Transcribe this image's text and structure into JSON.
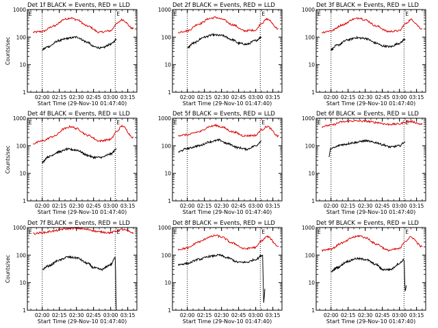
{
  "chart_data": {
    "type": "line",
    "yscale": "log",
    "ylim": [
      1,
      1000
    ],
    "y_ticks": [
      "1",
      "10",
      "100",
      "1000"
    ],
    "x_ticks": [
      "02:00",
      "02:15",
      "02:30",
      "02:45",
      "03:00",
      "03:15"
    ],
    "panels": [
      {
        "title": "Det 1f BLACK = Events, RED = LLD",
        "ylabel": "Counts/sec",
        "xlabel": "Start Time (29-Nov-10 01:47:40)",
        "mark_e": "E",
        "mark_s": "S",
        "series": [
          {
            "color": "#dd0000",
            "x": [
              "01:52",
              "02:00",
              "02:10",
              "02:20",
              "02:25",
              "02:30",
              "02:40",
              "02:50",
              "03:00",
              "03:05",
              "03:10",
              "03:20"
            ],
            "y": [
              150,
              160,
              250,
              450,
              500,
              430,
              250,
              150,
              170,
              300,
              430,
              200
            ]
          },
          {
            "color": "#000000",
            "x": [
              "02:00",
              "02:05",
              "02:15",
              "02:22",
              "02:30",
              "02:40",
              "02:45",
              "02:52",
              "03:00",
              "03:05"
            ],
            "y": [
              35,
              45,
              75,
              90,
              100,
              65,
              45,
              40,
              55,
              80
            ]
          }
        ]
      },
      {
        "title": "Det 2f BLACK = Events, RED = LLD",
        "ylabel": "",
        "xlabel": "Start Time (29-Nov-10 01:47:40)",
        "mark_e": "E",
        "mark_s": "S",
        "series": [
          {
            "color": "#dd0000",
            "x": [
              "01:52",
              "02:00",
              "02:10",
              "02:20",
              "02:25",
              "02:30",
              "02:40",
              "02:50",
              "03:00",
              "03:05",
              "03:10",
              "03:20"
            ],
            "y": [
              150,
              170,
              300,
              480,
              520,
              450,
              280,
              170,
              180,
              320,
              450,
              200
            ]
          },
          {
            "color": "#000000",
            "x": [
              "02:00",
              "02:05",
              "02:15",
              "02:22",
              "02:30",
              "02:40",
              "02:45",
              "02:52",
              "03:00",
              "03:05"
            ],
            "y": [
              40,
              60,
              100,
              120,
              115,
              80,
              60,
              55,
              75,
              100
            ]
          }
        ]
      },
      {
        "title": "Det 3f BLACK = Events, RED = LLD",
        "ylabel": "",
        "xlabel": "Start Time (29-Nov-10 01:47:40)",
        "mark_e": "E",
        "mark_s": "S",
        "series": [
          {
            "color": "#dd0000",
            "x": [
              "01:52",
              "02:00",
              "02:10",
              "02:20",
              "02:25",
              "02:30",
              "02:40",
              "02:50",
              "03:00",
              "03:05",
              "03:10",
              "03:20"
            ],
            "y": [
              150,
              170,
              280,
              450,
              500,
              420,
              250,
              160,
              170,
              300,
              430,
              200
            ]
          },
          {
            "color": "#000000",
            "x": [
              "02:00",
              "02:05",
              "02:15",
              "02:22",
              "02:30",
              "02:40",
              "02:45",
              "02:52",
              "03:00",
              "03:05"
            ],
            "y": [
              35,
              50,
              80,
              95,
              90,
              60,
              48,
              45,
              60,
              85
            ]
          }
        ]
      },
      {
        "title": "Det 4f BLACK = Events, RED = LLD",
        "ylabel": "Counts/sec",
        "xlabel": "Start Time (29-Nov-10 01:47:40)",
        "mark_e": "E",
        "mark_s": "S",
        "series": [
          {
            "color": "#dd0000",
            "x": [
              "01:52",
              "02:00",
              "02:10",
              "02:20",
              "02:25",
              "02:30",
              "02:40",
              "02:50",
              "03:00",
              "03:05",
              "03:10",
              "03:20"
            ],
            "y": [
              120,
              150,
              220,
              420,
              500,
              420,
              240,
              150,
              170,
              320,
              520,
              200
            ]
          },
          {
            "color": "#000000",
            "x": [
              "02:00",
              "02:05",
              "02:15",
              "02:22",
              "02:30",
              "02:40",
              "02:45",
              "02:52",
              "03:00",
              "03:05"
            ],
            "y": [
              25,
              40,
              60,
              75,
              70,
              45,
              38,
              38,
              50,
              75
            ]
          }
        ]
      },
      {
        "title": "Det 5f BLACK = Events, RED = LLD",
        "ylabel": "",
        "xlabel": "Start Time (29-Nov-10 01:47:40)",
        "mark_e": "E",
        "mark_s": "S",
        "series": [
          {
            "color": "#dd0000",
            "x": [
              "01:52",
              "02:00",
              "02:10",
              "02:20",
              "02:25",
              "02:30",
              "02:40",
              "02:50",
              "03:00",
              "03:05",
              "03:10",
              "03:20"
            ],
            "y": [
              240,
              250,
              320,
              500,
              550,
              480,
              320,
              230,
              240,
              380,
              500,
              220
            ]
          },
          {
            "color": "#000000",
            "x": [
              "01:52",
              "02:00",
              "02:10",
              "02:20",
              "02:28",
              "02:35",
              "02:45",
              "02:52",
              "03:00",
              "03:05"
            ],
            "y": [
              60,
              80,
              100,
              140,
              160,
              120,
              85,
              75,
              100,
              150
            ]
          }
        ]
      },
      {
        "title": "Det 6f BLACK = Events, RED = LLD",
        "ylabel": "",
        "xlabel": "Start Time (29-Nov-10 01:47:40)",
        "mark_e": "E",
        "mark_s": "S",
        "series": [
          {
            "color": "#dd0000",
            "x": [
              "01:52",
              "02:00",
              "02:10",
              "02:20",
              "02:30",
              "02:40",
              "02:50",
              "03:00",
              "03:05",
              "03:10",
              "03:20"
            ],
            "y": [
              500,
              560,
              740,
              800,
              780,
              700,
              600,
              620,
              720,
              760,
              600
            ]
          },
          {
            "color": "#000000",
            "x": [
              "01:58",
              "02:00",
              "02:10",
              "02:20",
              "02:30",
              "02:40",
              "02:45",
              "02:52",
              "03:00",
              "03:05"
            ],
            "y": [
              40,
              80,
              110,
              130,
              150,
              130,
              110,
              90,
              100,
              140
            ]
          }
        ]
      },
      {
        "title": "Det 7f BLACK = Events, RED = LLD",
        "ylabel": "Counts/sec",
        "xlabel": "Start Time (29-Nov-10 01:47:40)",
        "mark_e": "E",
        "mark_s": "S",
        "series": [
          {
            "color": "#dd0000",
            "x": [
              "01:52",
              "02:00",
              "02:10",
              "02:20",
              "02:30",
              "02:40",
              "02:50",
              "03:00",
              "03:05",
              "03:10",
              "03:20"
            ],
            "y": [
              600,
              650,
              750,
              900,
              950,
              850,
              700,
              650,
              750,
              850,
              650
            ]
          },
          {
            "color": "#000000",
            "x": [
              "02:00",
              "02:05",
              "02:15",
              "02:22",
              "02:30",
              "02:40",
              "02:45",
              "02:52",
              "03:00",
              "03:04",
              "03:05",
              "03:06"
            ],
            "y": [
              30,
              40,
              65,
              85,
              80,
              50,
              35,
              30,
              45,
              80,
              1,
              1
            ]
          }
        ]
      },
      {
        "title": "Det 8f BLACK = Events, RED = LLD",
        "ylabel": "",
        "xlabel": "Start Time (29-Nov-10 01:47:40)",
        "mark_e": "E",
        "mark_s": "S",
        "series": [
          {
            "color": "#dd0000",
            "x": [
              "01:52",
              "02:00",
              "02:10",
              "02:20",
              "02:25",
              "02:30",
              "02:40",
              "02:50",
              "03:00",
              "03:05",
              "03:10",
              "03:20"
            ],
            "y": [
              160,
              180,
              300,
              460,
              520,
              450,
              270,
              170,
              190,
              330,
              470,
              210
            ]
          },
          {
            "color": "#000000",
            "x": [
              "01:52",
              "02:00",
              "02:10",
              "02:20",
              "02:28",
              "02:35",
              "02:45",
              "02:52",
              "03:00",
              "03:06",
              "03:07",
              "03:08"
            ],
            "y": [
              45,
              50,
              70,
              90,
              100,
              80,
              55,
              55,
              70,
              100,
              2,
              6
            ]
          }
        ]
      },
      {
        "title": "Det 9f BLACK = Events, RED = LLD",
        "ylabel": "",
        "xlabel": "Start Time (29-Nov-10 01:47:40)",
        "mark_e": "E",
        "mark_s": "S",
        "series": [
          {
            "color": "#dd0000",
            "x": [
              "01:52",
              "02:00",
              "02:10",
              "02:20",
              "02:25",
              "02:30",
              "02:40",
              "02:50",
              "03:00",
              "03:05",
              "03:10",
              "03:20"
            ],
            "y": [
              150,
              170,
              280,
              450,
              500,
              430,
              250,
              150,
              170,
              320,
              450,
              200
            ]
          },
          {
            "color": "#000000",
            "x": [
              "02:00",
              "02:05",
              "02:15",
              "02:22",
              "02:30",
              "02:40",
              "02:45",
              "02:52",
              "03:00",
              "03:04",
              "03:05",
              "03:06"
            ],
            "y": [
              25,
              35,
              60,
              75,
              70,
              45,
              30,
              30,
              50,
              70,
              5,
              8
            ]
          }
        ]
      }
    ]
  }
}
